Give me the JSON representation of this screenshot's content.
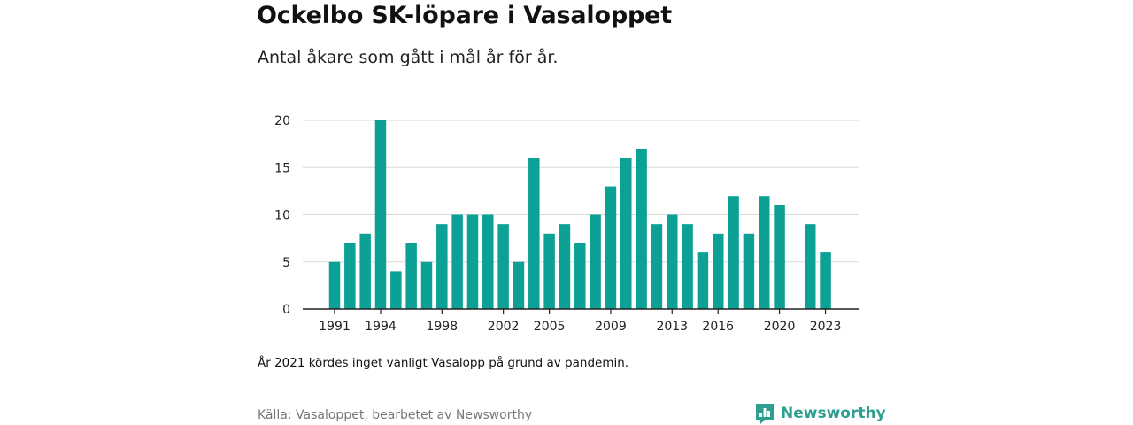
{
  "title": "Ockelbo SK-löpare i Vasaloppet",
  "subtitle": "Antal åkare som gått i mål år för år.",
  "note": "År 2021 kördes inget vanligt Vasalopp på grund av pandemin.",
  "source": "Källa: Vasaloppet, bearbetet av Newsworthy",
  "brand": {
    "name": "Newsworthy",
    "icon": "newsworthy-logo-icon"
  },
  "colors": {
    "bar": "#0da195",
    "grid": "#d9d9d9",
    "axis": "#222222",
    "brand": "#2e9e8f"
  },
  "chart_data": {
    "type": "bar",
    "title": "Ockelbo SK-löpare i Vasaloppet",
    "subtitle": "Antal åkare som gått i mål år för år.",
    "categories": [
      1991,
      1992,
      1993,
      1994,
      1995,
      1996,
      1997,
      1998,
      1999,
      2000,
      2001,
      2002,
      2003,
      2004,
      2005,
      2006,
      2007,
      2008,
      2009,
      2010,
      2011,
      2012,
      2013,
      2014,
      2015,
      2016,
      2017,
      2018,
      2019,
      2020,
      2021,
      2022,
      2023
    ],
    "values": [
      5,
      7,
      8,
      20,
      4,
      7,
      5,
      9,
      10,
      10,
      10,
      9,
      5,
      16,
      8,
      9,
      7,
      10,
      13,
      16,
      17,
      9,
      10,
      9,
      6,
      8,
      12,
      8,
      12,
      11,
      null,
      9,
      6
    ],
    "x_tick_labels": [
      "1991",
      "1994",
      "1998",
      "2002",
      "2005",
      "2009",
      "2013",
      "2016",
      "2020",
      "2023"
    ],
    "y_ticks": [
      0,
      5,
      10,
      15,
      20
    ],
    "ylim": [
      0,
      20
    ],
    "grid": true,
    "legend": "none",
    "xlabel": "",
    "ylabel": ""
  }
}
